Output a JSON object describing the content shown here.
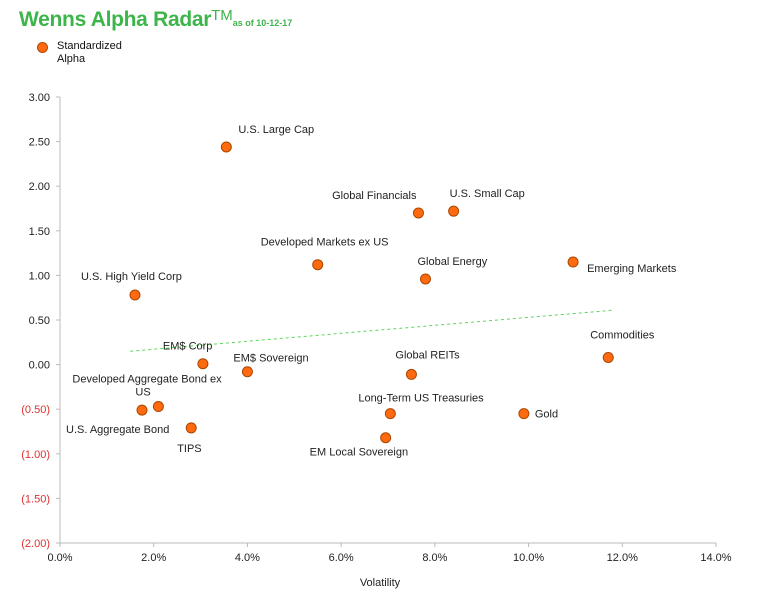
{
  "title": {
    "main": "Wenns Alpha Radar",
    "tm": "TM",
    "sub": "as of 10-12-17"
  },
  "legend": {
    "label": "Standardized Alpha",
    "color": "#ff6a10"
  },
  "colors": {
    "title": "#3cb54a",
    "point": "#ff6a10",
    "trend": "#5cd65c",
    "negative_tick": "#e03030"
  },
  "chart_data": {
    "type": "scatter",
    "xlabel": "Volatility",
    "ylabel": "",
    "xlim": [
      0,
      14
    ],
    "ylim": [
      -2,
      3
    ],
    "x_ticks": [
      "0.0%",
      "2.0%",
      "4.0%",
      "6.0%",
      "8.0%",
      "10.0%",
      "12.0%",
      "14.0%"
    ],
    "y_ticks": [
      "3.00",
      "2.50",
      "2.00",
      "1.50",
      "1.00",
      "0.50",
      "0.00",
      "(0.50)",
      "(1.00)",
      "(1.50)",
      "(2.00)"
    ],
    "grid": false,
    "legend_position": "top-left",
    "trendline": {
      "style": "dashed",
      "x": [
        1.5,
        11.8
      ],
      "y": [
        0.15,
        0.61
      ]
    },
    "series": [
      {
        "name": "Standardized Alpha",
        "points": [
          {
            "label": "U.S. Large Cap",
            "x": 3.55,
            "y": 2.44
          },
          {
            "label": "Global Financials",
            "x": 7.65,
            "y": 1.7
          },
          {
            "label": "U.S. Small Cap",
            "x": 8.4,
            "y": 1.72
          },
          {
            "label": "Developed Markets ex US",
            "x": 5.5,
            "y": 1.12
          },
          {
            "label": "Global Energy",
            "x": 7.8,
            "y": 0.96
          },
          {
            "label": "Emerging Markets",
            "x": 10.95,
            "y": 1.15
          },
          {
            "label": "U.S. High Yield Corp",
            "x": 1.6,
            "y": 0.78
          },
          {
            "label": "EM$ Corp",
            "x": 3.05,
            "y": 0.01
          },
          {
            "label": "EM$ Sovereign",
            "x": 4.0,
            "y": -0.08
          },
          {
            "label": "Global REITs",
            "x": 7.5,
            "y": -0.11
          },
          {
            "label": "Commodities",
            "x": 11.7,
            "y": 0.08
          },
          {
            "label": "Developed Aggregate Bond ex US",
            "x": 2.1,
            "y": -0.47
          },
          {
            "label": "U.S. Aggregate Bond",
            "x": 1.75,
            "y": -0.51
          },
          {
            "label": "TIPS",
            "x": 2.8,
            "y": -0.71
          },
          {
            "label": "Long-Term US Treasuries",
            "x": 7.05,
            "y": -0.55
          },
          {
            "label": "Gold",
            "x": 9.9,
            "y": -0.55
          },
          {
            "label": "EM Local Sovereign",
            "x": 6.95,
            "y": -0.82
          }
        ]
      }
    ]
  }
}
